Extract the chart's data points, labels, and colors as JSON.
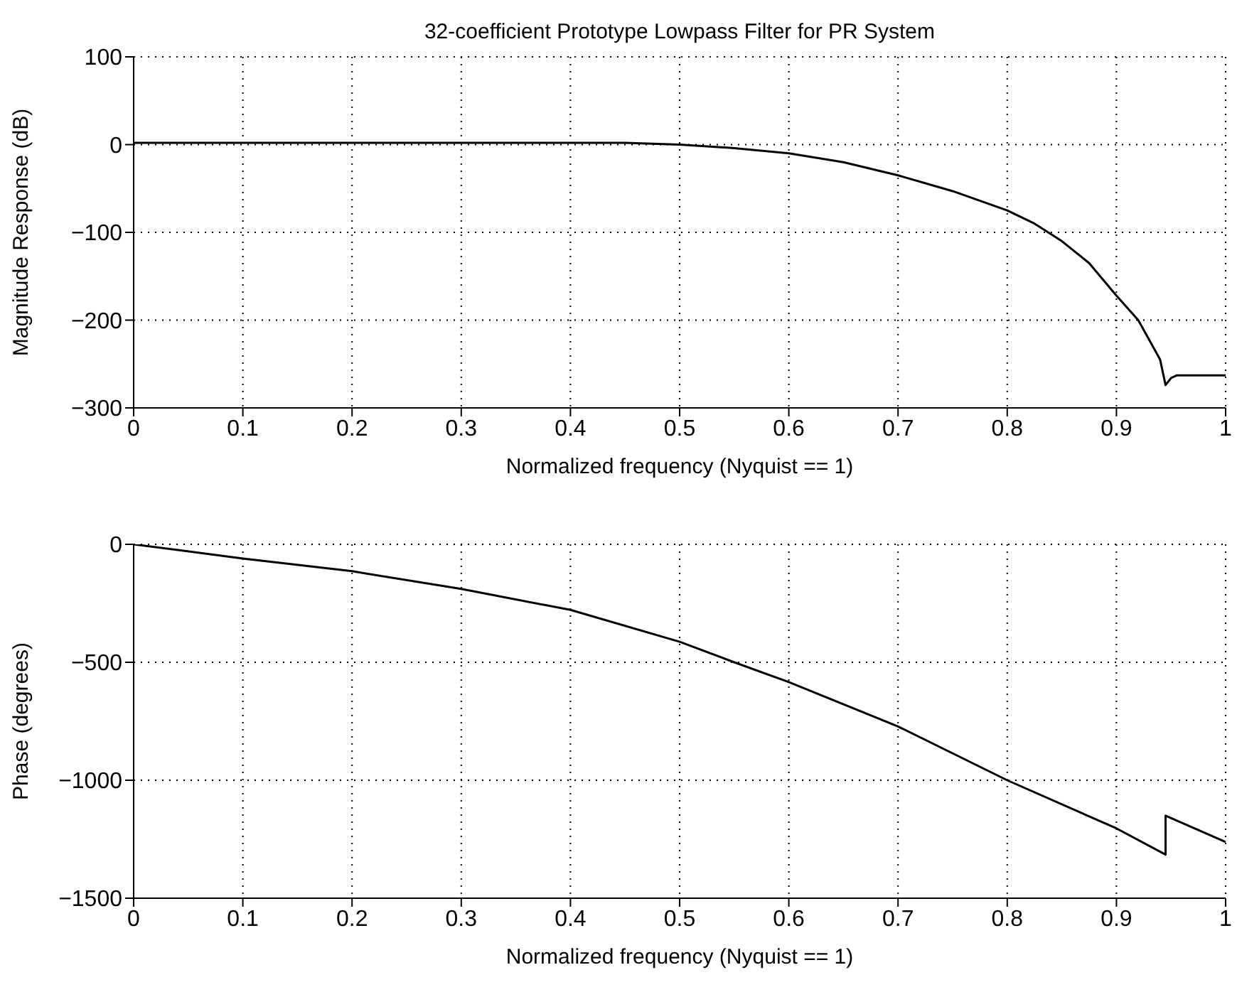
{
  "chart_data": [
    {
      "type": "line",
      "title": "32-coefficient Prototype Lowpass Filter for PR System",
      "xlabel": "Normalized frequency (Nyquist == 1)",
      "ylabel": "Magnitude Response (dB)",
      "x": [
        0,
        0.1,
        0.2,
        0.3,
        0.4,
        0.45,
        0.5,
        0.55,
        0.6,
        0.65,
        0.7,
        0.75,
        0.8,
        0.825,
        0.85,
        0.875,
        0.9,
        0.92,
        0.94,
        0.945,
        0.95,
        0.955,
        1
      ],
      "series": [
        {
          "color": "#000000",
          "values": [
            2,
            2,
            2,
            2,
            2,
            2,
            0,
            -4,
            -10,
            -20,
            -35,
            -53,
            -75,
            -90,
            -110,
            -135,
            -172,
            -200,
            -245,
            -274,
            -266,
            -263,
            -263
          ]
        }
      ],
      "xlim": [
        0,
        1
      ],
      "xticks": [
        0,
        0.1,
        0.2,
        0.3,
        0.4,
        0.5,
        0.6,
        0.7,
        0.8,
        0.9,
        1
      ],
      "ylim": [
        -300,
        100
      ],
      "yticks": [
        -300,
        -200,
        -100,
        0,
        100
      ],
      "grid": true,
      "marker": "none",
      "line_style": "solid"
    },
    {
      "type": "line",
      "xlabel": "Normalized frequency (Nyquist == 1)",
      "ylabel": "Phase (degrees)",
      "x": [
        0,
        0.1,
        0.2,
        0.3,
        0.4,
        0.5,
        0.55,
        0.6,
        0.7,
        0.8,
        0.9,
        0.945,
        0.945,
        1
      ],
      "series": [
        {
          "color": "#000000",
          "values": [
            0,
            -60,
            -114,
            -189,
            -278,
            -413,
            -500,
            -584,
            -772,
            -1000,
            -1204,
            -1315,
            -1150,
            -1262
          ]
        }
      ],
      "xlim": [
        0,
        1
      ],
      "xticks": [
        0,
        0.1,
        0.2,
        0.3,
        0.4,
        0.5,
        0.6,
        0.7,
        0.8,
        0.9,
        1
      ],
      "ylim": [
        -1500,
        0
      ],
      "yticks": [
        -1500,
        -1000,
        -500,
        0
      ],
      "grid": true,
      "marker": "none",
      "line_style": "solid"
    }
  ]
}
